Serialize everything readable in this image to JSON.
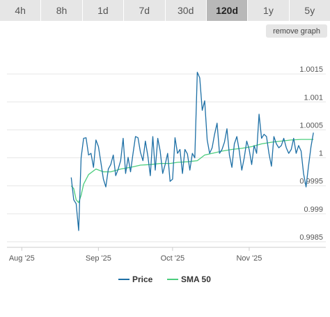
{
  "range_tabs": [
    {
      "label": "4h",
      "active": false
    },
    {
      "label": "8h",
      "active": false
    },
    {
      "label": "1d",
      "active": false
    },
    {
      "label": "7d",
      "active": false
    },
    {
      "label": "30d",
      "active": false
    },
    {
      "label": "120d",
      "active": true
    },
    {
      "label": "1y",
      "active": false
    },
    {
      "label": "5y",
      "active": false
    }
  ],
  "remove_graph_label": "remove graph",
  "colors": {
    "price": "#1d6fa5",
    "sma": "#4ccd7e",
    "grid": "#e6e6e6"
  },
  "chart_data": {
    "type": "line",
    "title": "",
    "xlabel": "",
    "ylabel": "",
    "x_range": [
      "2025-07-26",
      "2025-12-02"
    ],
    "ylim": [
      0.9984,
      1.002
    ],
    "y_ticks": [
      0.9985,
      0.999,
      0.9995,
      1,
      1.0005,
      1.001,
      1.0015
    ],
    "y_tick_labels": [
      "0.9985",
      "0.999",
      "0.9995",
      "1",
      "1.0005",
      "1.001",
      "1.0015"
    ],
    "x_ticks": [
      {
        "date": "2025-08-01",
        "label": "Aug '25"
      },
      {
        "date": "2025-09-01",
        "label": "Sep '25"
      },
      {
        "date": "2025-10-01",
        "label": "Oct '25"
      },
      {
        "date": "2025-11-01",
        "label": "Nov '25"
      }
    ],
    "grid": {
      "horizontal": true,
      "vertical": false
    },
    "legend_position": "bottom-center",
    "series": [
      {
        "name": "Price",
        "color": "#1d6fa5",
        "points": [
          [
            "2025-08-21",
            0.99965
          ],
          [
            "2025-08-22",
            0.99925
          ],
          [
            "2025-08-23",
            0.99918
          ],
          [
            "2025-08-24",
            0.9987
          ],
          [
            "2025-08-25",
            1.0
          ],
          [
            "2025-08-26",
            1.00035
          ],
          [
            "2025-08-27",
            1.00036
          ],
          [
            "2025-08-28",
            1.00005
          ],
          [
            "2025-08-29",
            1.00008
          ],
          [
            "2025-08-30",
            0.99983
          ],
          [
            "2025-08-31",
            1.00032
          ],
          [
            "2025-09-01",
            1.0002
          ],
          [
            "2025-09-02",
            0.99992
          ],
          [
            "2025-09-03",
            0.99962
          ],
          [
            "2025-09-04",
            0.99948
          ],
          [
            "2025-09-05",
            0.9998
          ],
          [
            "2025-09-06",
            0.99988
          ],
          [
            "2025-09-07",
            1.00005
          ],
          [
            "2025-09-08",
            0.99968
          ],
          [
            "2025-09-09",
            0.9998
          ],
          [
            "2025-09-10",
            0.99995
          ],
          [
            "2025-09-11",
            1.00035
          ],
          [
            "2025-09-12",
            0.99972
          ],
          [
            "2025-09-13",
            1.00001
          ],
          [
            "2025-09-14",
            0.99975
          ],
          [
            "2025-09-15",
            1.00008
          ],
          [
            "2025-09-16",
            1.00038
          ],
          [
            "2025-09-17",
            1.00036
          ],
          [
            "2025-09-18",
            1.0001
          ],
          [
            "2025-09-19",
            0.99995
          ],
          [
            "2025-09-20",
            1.0003
          ],
          [
            "2025-09-21",
            1.00003
          ],
          [
            "2025-09-22",
            0.99968
          ],
          [
            "2025-09-23",
            1.00038
          ],
          [
            "2025-09-24",
            0.99978
          ],
          [
            "2025-09-25",
            1.00035
          ],
          [
            "2025-09-26",
            1.00012
          ],
          [
            "2025-09-27",
            0.99972
          ],
          [
            "2025-09-28",
            0.99988
          ],
          [
            "2025-09-29",
            1.00008
          ],
          [
            "2025-09-30",
            0.99958
          ],
          [
            "2025-10-01",
            0.99962
          ],
          [
            "2025-10-02",
            1.00036
          ],
          [
            "2025-10-03",
            1.00008
          ],
          [
            "2025-10-04",
            1.00015
          ],
          [
            "2025-10-05",
            0.99972
          ],
          [
            "2025-10-06",
            1.00015
          ],
          [
            "2025-10-07",
            1.00007
          ],
          [
            "2025-10-08",
            0.99978
          ],
          [
            "2025-10-09",
            1.00008
          ],
          [
            "2025-10-10",
            1.0
          ],
          [
            "2025-10-11",
            1.00153
          ],
          [
            "2025-10-12",
            1.00143
          ],
          [
            "2025-10-13",
            1.00085
          ],
          [
            "2025-10-14",
            1.00102
          ],
          [
            "2025-10-15",
            1.00032
          ],
          [
            "2025-10-16",
            1.00008
          ],
          [
            "2025-10-17",
            1.00018
          ],
          [
            "2025-10-18",
            1.00042
          ],
          [
            "2025-10-19",
            1.00062
          ],
          [
            "2025-10-20",
            1.00008
          ],
          [
            "2025-10-21",
            1.00015
          ],
          [
            "2025-10-22",
            1.00028
          ],
          [
            "2025-10-23",
            1.00052
          ],
          [
            "2025-10-24",
            1.00005
          ],
          [
            "2025-10-25",
            0.99983
          ],
          [
            "2025-10-26",
            1.00025
          ],
          [
            "2025-10-27",
            1.00038
          ],
          [
            "2025-10-28",
            1.00012
          ],
          [
            "2025-10-29",
            0.99978
          ],
          [
            "2025-10-30",
            1.0
          ],
          [
            "2025-10-31",
            1.0003
          ],
          [
            "2025-11-01",
            1.00015
          ],
          [
            "2025-11-02",
            0.99988
          ],
          [
            "2025-11-03",
            1.00022
          ],
          [
            "2025-11-04",
            1.00008
          ],
          [
            "2025-11-05",
            1.00078
          ],
          [
            "2025-11-06",
            1.00035
          ],
          [
            "2025-11-07",
            1.00042
          ],
          [
            "2025-11-08",
            1.00038
          ],
          [
            "2025-11-09",
            1.00008
          ],
          [
            "2025-11-10",
            0.99985
          ],
          [
            "2025-11-11",
            1.00038
          ],
          [
            "2025-11-12",
            1.00025
          ],
          [
            "2025-11-13",
            1.00018
          ],
          [
            "2025-11-14",
            1.00022
          ],
          [
            "2025-11-15",
            1.00035
          ],
          [
            "2025-11-16",
            1.00018
          ],
          [
            "2025-11-17",
            1.00008
          ],
          [
            "2025-11-18",
            1.00015
          ],
          [
            "2025-11-19",
            1.00035
          ],
          [
            "2025-11-20",
            1.00008
          ],
          [
            "2025-11-21",
            1.00022
          ],
          [
            "2025-11-22",
            1.00012
          ],
          [
            "2025-11-23",
            0.99972
          ],
          [
            "2025-11-24",
            0.99948
          ],
          [
            "2025-11-25",
            0.99985
          ],
          [
            "2025-11-26",
            1.0002
          ],
          [
            "2025-11-27",
            1.00045
          ]
        ]
      },
      {
        "name": "SMA 50",
        "color": "#4ccd7e",
        "points": [
          [
            "2025-08-21",
            0.9995
          ],
          [
            "2025-08-22",
            0.99945
          ],
          [
            "2025-08-23",
            0.99925
          ],
          [
            "2025-08-24",
            0.9992
          ],
          [
            "2025-08-25",
            0.99933
          ],
          [
            "2025-08-26",
            0.99953
          ],
          [
            "2025-08-28",
            0.9997
          ],
          [
            "2025-08-31",
            0.9998
          ],
          [
            "2025-09-03",
            0.99975
          ],
          [
            "2025-09-06",
            0.99975
          ],
          [
            "2025-09-10",
            0.9998
          ],
          [
            "2025-09-14",
            0.99983
          ],
          [
            "2025-09-18",
            0.99987
          ],
          [
            "2025-09-22",
            0.99988
          ],
          [
            "2025-09-26",
            0.9999
          ],
          [
            "2025-09-30",
            0.9999
          ],
          [
            "2025-10-03",
            0.99992
          ],
          [
            "2025-10-07",
            0.99993
          ],
          [
            "2025-10-11",
            0.99995
          ],
          [
            "2025-10-14",
            1.00005
          ],
          [
            "2025-10-17",
            1.00008
          ],
          [
            "2025-10-21",
            1.00012
          ],
          [
            "2025-10-25",
            1.00015
          ],
          [
            "2025-10-29",
            1.00017
          ],
          [
            "2025-11-02",
            1.0002
          ],
          [
            "2025-11-06",
            1.00025
          ],
          [
            "2025-11-10",
            1.00028
          ],
          [
            "2025-11-14",
            1.0003
          ],
          [
            "2025-11-18",
            1.00032
          ],
          [
            "2025-11-22",
            1.00033
          ],
          [
            "2025-11-27",
            1.00033
          ]
        ]
      }
    ]
  }
}
